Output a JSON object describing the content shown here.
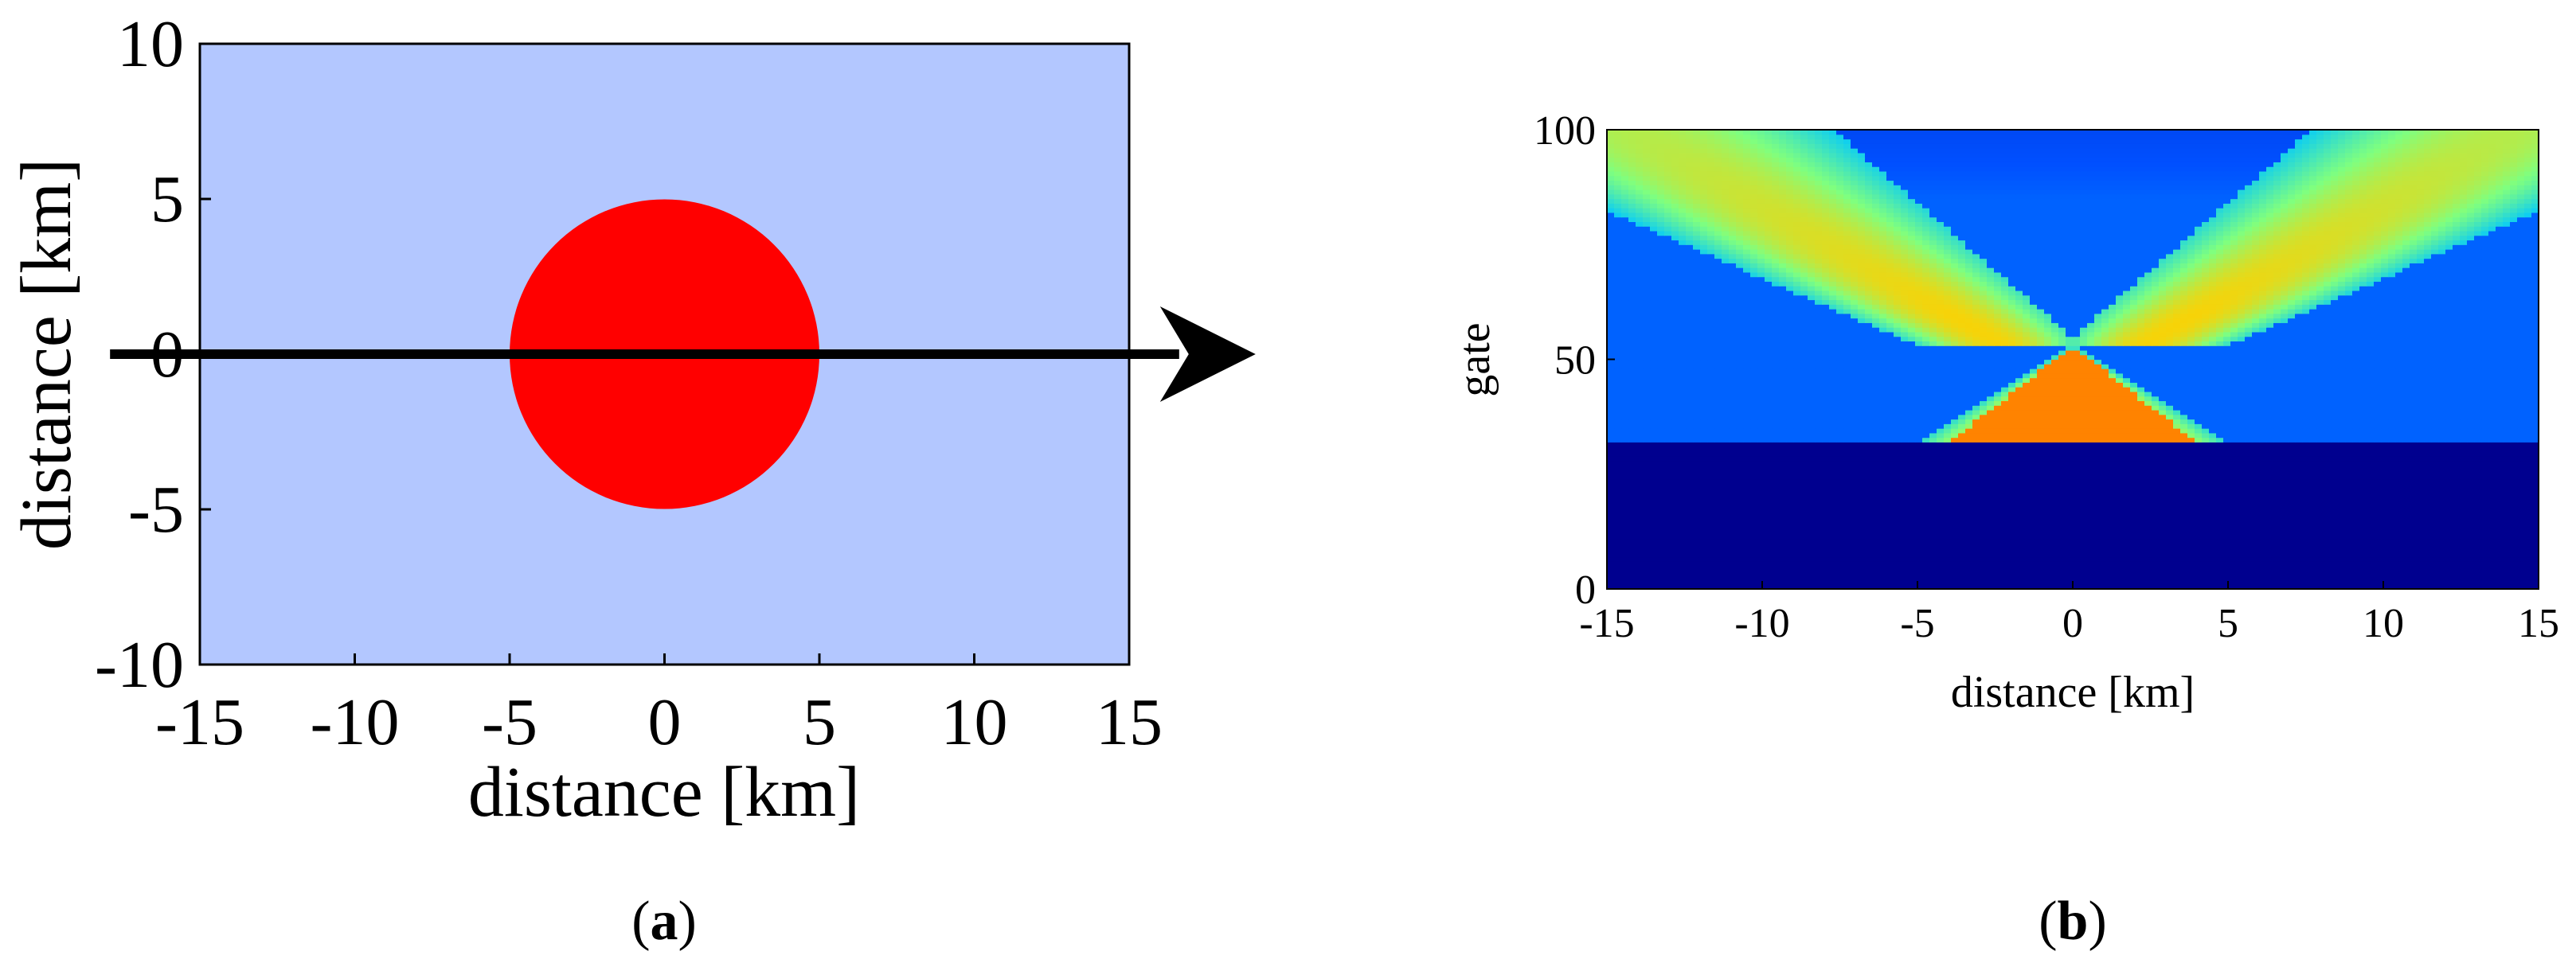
{
  "colors": {
    "background_region": "#b3c7ff",
    "target_disk": "#ff0000",
    "arrow": "#000000",
    "colormap": [
      "#00008f",
      "#0050ff",
      "#00c8ff",
      "#7fff7f",
      "#ffd000",
      "#ff4000"
    ]
  },
  "chart_data": [
    {
      "type": "diagram-map",
      "panel_label": "(a)",
      "panel_letter": "a",
      "xlabel": "distance [km]",
      "ylabel": "distance [km]",
      "xlim": [
        -15,
        15
      ],
      "ylim": [
        -10,
        10
      ],
      "xticks": [
        -15,
        -10,
        -5,
        0,
        5,
        10,
        15
      ],
      "yticks": [
        10,
        5,
        0,
        -5,
        -10
      ],
      "circle": {
        "center": [
          0,
          0
        ],
        "radius_km": 5
      },
      "arrow": {
        "y": 0,
        "from_x": -17.9,
        "to_x": 17.9,
        "direction": "right"
      },
      "grid": false
    },
    {
      "type": "heatmap",
      "panel_label": "(b)",
      "panel_letter": "b",
      "xlabel": "distance [km]",
      "ylabel": "gate",
      "xlim": [
        -15,
        15
      ],
      "ylim": [
        0,
        100
      ],
      "xticks": [
        -15,
        -10,
        -5,
        0,
        5,
        10,
        15
      ],
      "yticks": [
        100,
        50,
        0
      ],
      "ground_gate": 32,
      "apex": {
        "x": 0,
        "gate": 53
      },
      "description_values": {
        "below_ground_level": "lowest",
        "near_apex_center": "highest"
      },
      "grid": false
    }
  ]
}
